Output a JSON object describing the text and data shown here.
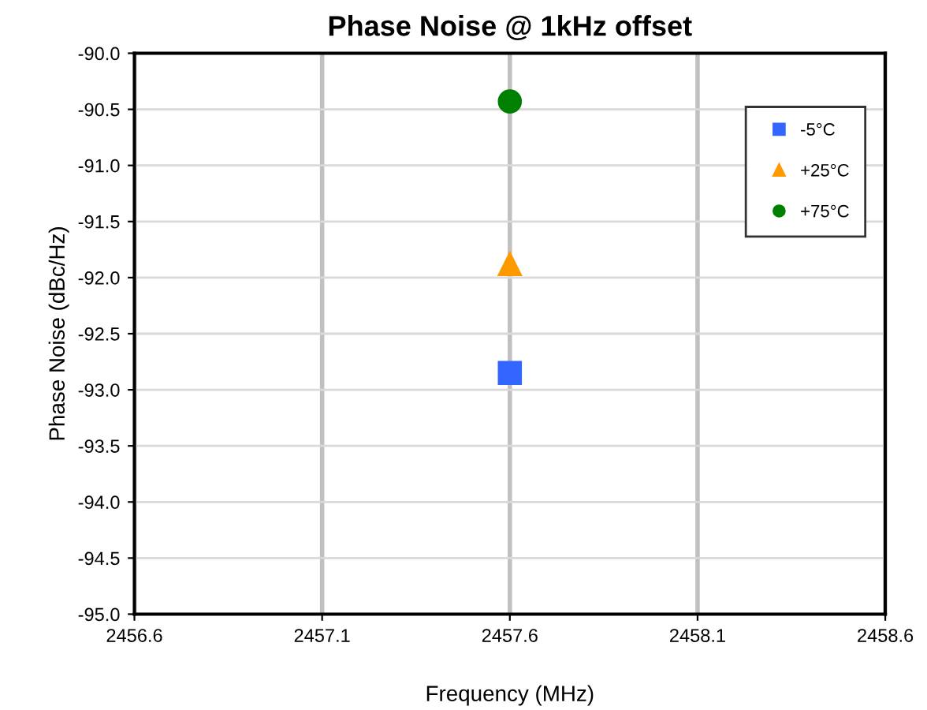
{
  "chart_data": {
    "type": "scatter",
    "title": "Phase Noise @ 1kHz offset",
    "xlabel": "Frequency (MHz)",
    "ylabel": "Phase Noise (dBc/Hz)",
    "xlim": [
      2456.6,
      2458.6
    ],
    "xticks": [
      2456.6,
      2457.1,
      2457.6,
      2458.1,
      2458.6
    ],
    "ylim": [
      -95.0,
      -90.0
    ],
    "yticks": [
      {
        "value": -95,
        "label": "-95.0"
      },
      {
        "value": -94.5,
        "label": "-94.5"
      },
      {
        "value": -94,
        "label": "-94.0"
      },
      {
        "value": -93.5,
        "label": "-93.5"
      },
      {
        "value": -93,
        "label": "-93.0"
      },
      {
        "value": -92.5,
        "label": "-92.5"
      },
      {
        "value": -92,
        "label": "-92.0"
      },
      {
        "value": -91.5,
        "label": "-91.5"
      },
      {
        "value": -91,
        "label": "-91.0"
      },
      {
        "value": -90.5,
        "label": "-90.5"
      },
      {
        "value": -90,
        "label": "-90.0"
      }
    ],
    "grid": true,
    "legend": "top right",
    "x": [
      2457.6
    ],
    "series": [
      {
        "name": "-5°C",
        "color": "#3366ff",
        "marker": "square",
        "values": [
          -92.85
        ]
      },
      {
        "name": "+25°C",
        "color": "#ff9900",
        "marker": "triangle",
        "values": [
          -91.88
        ]
      },
      {
        "name": "+75°C",
        "color": "#008000",
        "marker": "circle",
        "values": [
          -90.43
        ]
      }
    ]
  }
}
